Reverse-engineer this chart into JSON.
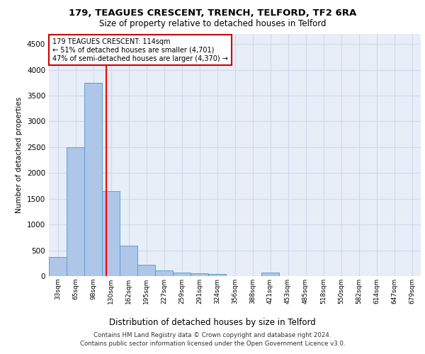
{
  "title1": "179, TEAGUES CRESCENT, TRENCH, TELFORD, TF2 6RA",
  "title2": "Size of property relative to detached houses in Telford",
  "xlabel": "Distribution of detached houses by size in Telford",
  "ylabel": "Number of detached properties",
  "footnote1": "Contains HM Land Registry data © Crown copyright and database right 2024.",
  "footnote2": "Contains public sector information licensed under the Open Government Licence v3.0.",
  "bar_labels": [
    "33sqm",
    "65sqm",
    "98sqm",
    "130sqm",
    "162sqm",
    "195sqm",
    "227sqm",
    "259sqm",
    "291sqm",
    "324sqm",
    "356sqm",
    "388sqm",
    "421sqm",
    "453sqm",
    "485sqm",
    "518sqm",
    "550sqm",
    "582sqm",
    "614sqm",
    "647sqm",
    "679sqm"
  ],
  "bar_values": [
    375,
    2500,
    3750,
    1650,
    590,
    225,
    110,
    75,
    55,
    40,
    0,
    0,
    70,
    0,
    0,
    0,
    0,
    0,
    0,
    0,
    0
  ],
  "bar_color": "#aec6e8",
  "bar_edge_color": "#5a9fd4",
  "grid_color": "#d0d8e8",
  "bg_color": "#e8eef8",
  "red_line_x": 2.75,
  "annotation_text": "179 TEAGUES CRESCENT: 114sqm\n← 51% of detached houses are smaller (4,701)\n47% of semi-detached houses are larger (4,370) →",
  "annotation_box_color": "#ffffff",
  "annotation_box_edge": "#cc0000",
  "ylim": [
    0,
    4700
  ],
  "yticks": [
    0,
    500,
    1000,
    1500,
    2000,
    2500,
    3000,
    3500,
    4000,
    4500
  ]
}
